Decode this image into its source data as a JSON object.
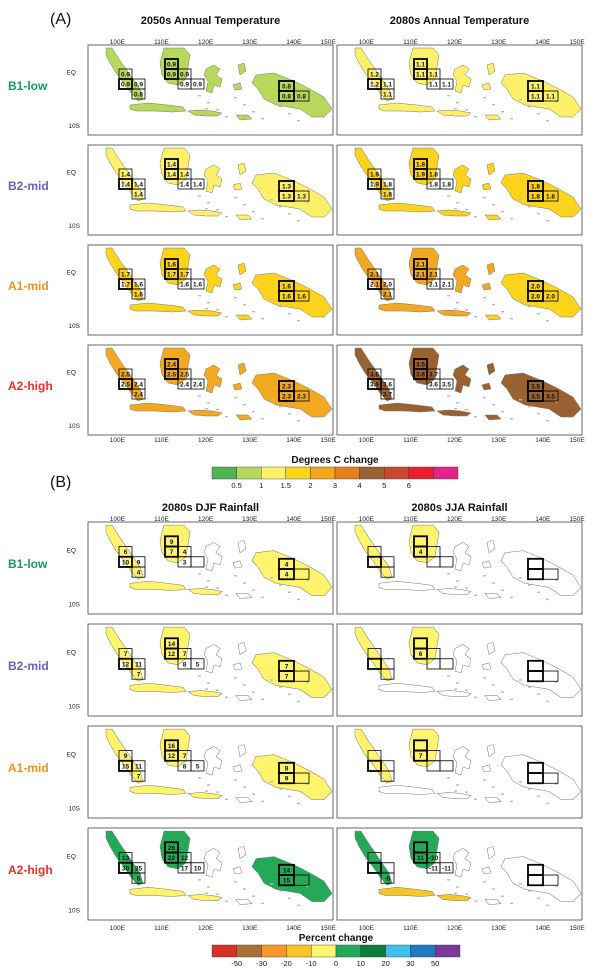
{
  "figure": {
    "panel_a_label": "(A)",
    "panel_b_label": "(B)",
    "scenarios": [
      {
        "name": "B1-low",
        "color": "#1a9a5e"
      },
      {
        "name": "B2-mid",
        "color": "#6a5fb0"
      },
      {
        "name": "A1-mid",
        "color": "#f0921e"
      },
      {
        "name": "A2-high",
        "color": "#e8302a"
      }
    ],
    "lon_ticks": [
      "100E",
      "110E",
      "120E",
      "130E",
      "140E",
      "150E"
    ],
    "lat_ticks": [
      "EQ",
      "10S"
    ]
  },
  "chart_data": [
    {
      "type": "heatmap",
      "panel": "A",
      "columns": [
        "2050s Annual Temperature",
        "2080s Annual Temperature"
      ],
      "rows": [
        "B1-low",
        "B2-mid",
        "A1-mid",
        "A2-high"
      ],
      "box_labels": [
        [
          [
            "0.9",
            "0.9",
            "0.9",
            "0.8",
            "0.9",
            "0.9",
            "0.9",
            "0.9",
            "0.9",
            "0.8",
            "0.8",
            "0.8"
          ],
          [
            "1.2",
            "1.2",
            "1.1",
            "1.1",
            "1.1",
            "1.1",
            "1.1",
            "1.1",
            "1.1",
            "1.1",
            "1.1",
            "1.1"
          ]
        ],
        [
          [
            "1.4",
            "1.4",
            "1.4",
            "1.4",
            "1.4",
            "1.4",
            "1.4",
            "1.4",
            "1.4",
            "1.3",
            "1.3",
            "1.3"
          ],
          [
            "1.9",
            "1.9",
            "1.8",
            "1.8",
            "1.8",
            "1.9",
            "1.8",
            "1.8",
            "1.8",
            "1.8",
            "1.8",
            "1.8"
          ]
        ],
        [
          [
            "1.7",
            "1.7",
            "1.6",
            "1.6",
            "1.6",
            "1.7",
            "1.7",
            "1.6",
            "1.6",
            "1.6",
            "1.6",
            "1.6"
          ],
          [
            "2.1",
            "2.1",
            "2.0",
            "2.1",
            "2.1",
            "2.1",
            "2.1",
            "2.1",
            "2.1",
            "2.0",
            "2.0",
            "2.0"
          ]
        ],
        [
          [
            "2.5",
            "2.5",
            "2.4",
            "2.4",
            "2.4",
            "2.5",
            "2.5",
            "2.4",
            "2.4",
            "2.3",
            "2.3",
            "2.3"
          ],
          [
            "3.6",
            "3.6",
            "3.6",
            "3.7",
            "3.5",
            "3.6",
            "3.7",
            "3.6",
            "3.5",
            "3.5",
            "3.5",
            "3.5"
          ]
        ]
      ],
      "colorbar": {
        "title": "Degrees C change",
        "ticks": [
          "0.5",
          "1",
          "1.5",
          "2",
          "3",
          "4",
          "5",
          "6"
        ],
        "colors": [
          "#4fb457",
          "#b7d85a",
          "#fff06a",
          "#fcd41c",
          "#f2a91f",
          "#e6801e",
          "#9a6230",
          "#c84a2c",
          "#e8202b",
          "#e2248c"
        ]
      }
    },
    {
      "type": "heatmap",
      "panel": "B",
      "columns": [
        "2080s DJF Rainfall",
        "2080s JJA Rainfall"
      ],
      "rows": [
        "B1-low",
        "B2-mid",
        "A1-mid",
        "A2-high"
      ],
      "box_labels": [
        [
          [
            "6",
            "10",
            "9",
            "4",
            "9",
            "7",
            "4",
            "3",
            "",
            "4",
            "4",
            ""
          ],
          [
            "",
            "",
            "",
            "",
            "",
            "4",
            "",
            "",
            "",
            "",
            "",
            ""
          ]
        ],
        [
          [
            "7",
            "12",
            "11",
            "7",
            "14",
            "12",
            "7",
            "8",
            "5",
            "7",
            "7",
            ""
          ],
          [
            "",
            "",
            "",
            "",
            "",
            "6",
            "",
            "",
            "",
            "",
            "",
            ""
          ]
        ],
        [
          [
            "9",
            "15",
            "11",
            "7",
            "16",
            "12",
            "7",
            "8",
            "5",
            "8",
            "9",
            ""
          ],
          [
            "",
            "",
            "",
            "",
            "",
            "7",
            "",
            "",
            "",
            "",
            "",
            ""
          ]
        ],
        [
          [
            "13",
            "30",
            "35",
            "5",
            "26",
            "22",
            "12",
            "17",
            "10",
            "14",
            "15",
            ""
          ],
          [
            "",
            "",
            "",
            "-5",
            "",
            "11",
            "-10",
            "-11",
            "-11",
            "",
            "",
            ""
          ]
        ]
      ],
      "colorbar": {
        "title": "Percent change",
        "ticks": [
          "-50",
          "-30",
          "-20",
          "-10",
          "0",
          "10",
          "20",
          "30",
          "50"
        ],
        "colors": [
          "#d6322a",
          "#a9713a",
          "#f59a2a",
          "#f9c62a",
          "#fff46c",
          "#23a957",
          "#0f7a3c",
          "#3fc0e8",
          "#1f78c2",
          "#7a3a9a"
        ]
      }
    }
  ]
}
